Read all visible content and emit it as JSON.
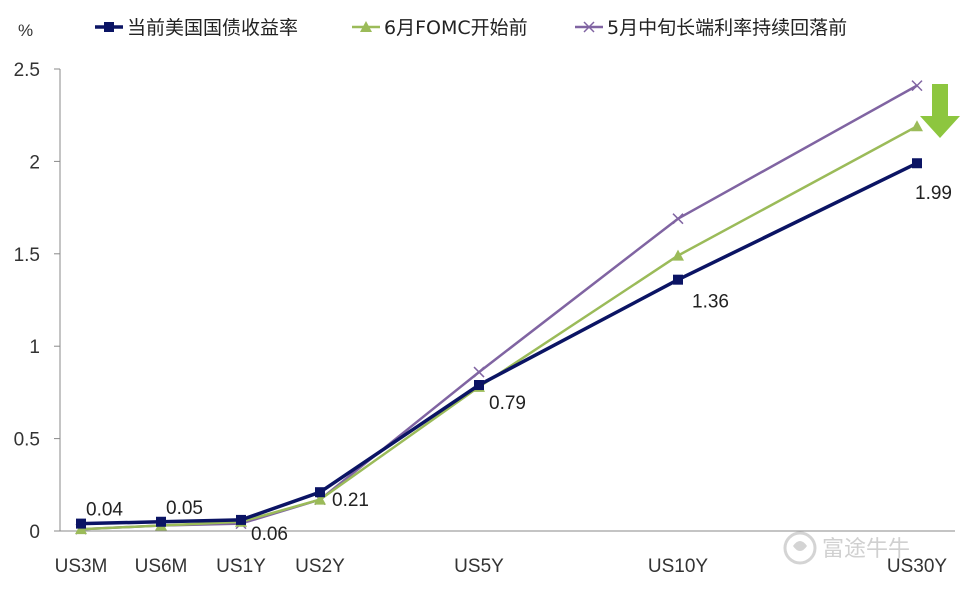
{
  "chart_data": {
    "type": "line",
    "y_unit": "%",
    "categories": [
      "US3M",
      "US6M",
      "US1Y",
      "US2Y",
      "US5Y",
      "US10Y",
      "US30Y"
    ],
    "x_positions_years": [
      0.25,
      0.5,
      1,
      2,
      5,
      10,
      30
    ],
    "ylim": [
      0,
      2.5
    ],
    "yticks": [
      "0",
      "0.5",
      "1",
      "1.5",
      "2",
      "2.5"
    ],
    "grid": false,
    "legend_position": "top",
    "series": [
      {
        "name": "当前美国国债收益率",
        "color": "#0b1464",
        "marker": "square",
        "values": [
          0.04,
          0.05,
          0.06,
          0.21,
          0.79,
          1.36,
          1.99
        ],
        "data_labels": [
          "0.04",
          "0.05",
          "0.06",
          "0.21",
          "0.79",
          "1.36",
          "1.99"
        ]
      },
      {
        "name": "6月FOMC开始前",
        "color": "#9bbb59",
        "marker": "triangle",
        "values": [
          0.01,
          0.03,
          0.05,
          0.17,
          0.78,
          1.49,
          2.19
        ]
      },
      {
        "name": "5月中旬长端利率持续回落前",
        "color": "#8064a2",
        "marker": "x",
        "values": [
          0.01,
          0.03,
          0.04,
          0.17,
          0.86,
          1.69,
          2.41
        ]
      }
    ],
    "annotation": {
      "type": "arrow-down",
      "color": "#8dc63f"
    }
  },
  "watermark": {
    "text": "富途牛牛",
    "icon": "futu-logo-icon"
  }
}
